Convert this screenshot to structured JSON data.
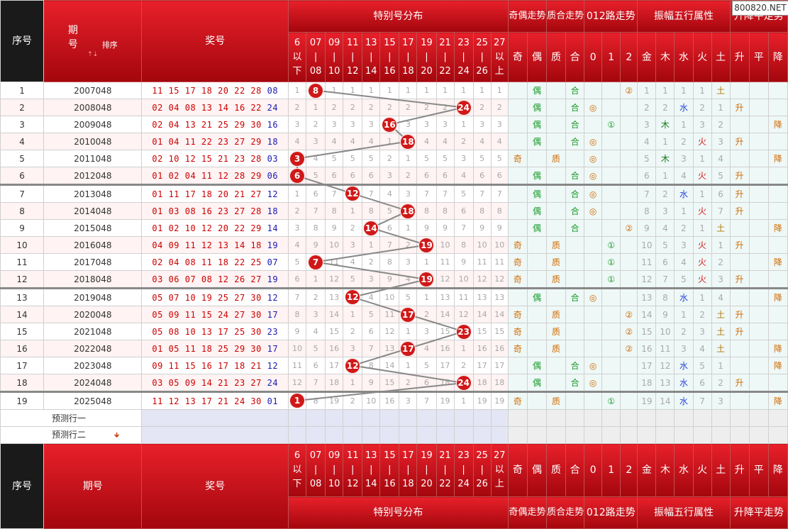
{
  "logo": "800820.NET",
  "header": {
    "seq": "序号",
    "period": "期号",
    "sort": "排序",
    "sort_arrows": "⇡⇣",
    "number": "奖号",
    "special": "特别号分布",
    "odd_even": "奇偶走势",
    "prime": "质合走势",
    "road": "012路走势",
    "wuxing": "振幅五行属性",
    "updown": "升降平走势"
  },
  "bins": [
    [
      "6",
      "以",
      "下"
    ],
    [
      "07",
      "|",
      "08"
    ],
    [
      "09",
      "|",
      "10"
    ],
    [
      "11",
      "|",
      "12"
    ],
    [
      "13",
      "|",
      "14"
    ],
    [
      "15",
      "|",
      "16"
    ],
    [
      "17",
      "|",
      "18"
    ],
    [
      "19",
      "|",
      "20"
    ],
    [
      "21",
      "|",
      "22"
    ],
    [
      "23",
      "|",
      "24"
    ],
    [
      "25",
      "|",
      "26"
    ],
    [
      "27",
      "以",
      "上"
    ]
  ],
  "subheaders": {
    "odd_even": [
      "奇",
      "偶"
    ],
    "prime": [
      "质",
      "合"
    ],
    "road": [
      "0",
      "1",
      "2"
    ],
    "wuxing": [
      "金",
      "木",
      "水",
      "火",
      "土"
    ],
    "updown": [
      "升",
      "平",
      "降"
    ]
  },
  "rows": [
    {
      "seq": "1",
      "period": "2007048",
      "numbers": "11 15 17 18 20 22 28",
      "special": "08",
      "bin": 1,
      "miss": [
        "1",
        "",
        "1",
        "1",
        "1",
        "1",
        "1",
        "1",
        "1",
        "1",
        "1",
        "1"
      ],
      "oe": [
        "",
        "偶"
      ],
      "pc": [
        "",
        "合"
      ],
      "road": [
        "",
        "",
        "②"
      ],
      "wx": [
        "1",
        "1",
        "1",
        "1",
        "土"
      ],
      "wxc": [
        "wgray",
        "wgray",
        "wgray",
        "wgray",
        "wearth"
      ],
      "ud": [
        "",
        "",
        ""
      ]
    },
    {
      "seq": "2",
      "period": "2008048",
      "numbers": "02 04 08 13 14 16 22",
      "special": "24",
      "bin": 9,
      "miss": [
        "2",
        "1",
        "2",
        "2",
        "2",
        "2",
        "2",
        "2",
        "2",
        "",
        "2",
        "2"
      ],
      "oe": [
        "",
        "偶"
      ],
      "pc": [
        "",
        "合"
      ],
      "road": [
        "◎",
        "",
        ""
      ],
      "wx": [
        "2",
        "2",
        "水",
        "2",
        "1"
      ],
      "wxc": [
        "wgray",
        "wgray",
        "wwater",
        "wgray",
        "wgray"
      ],
      "ud": [
        "升",
        "",
        ""
      ]
    },
    {
      "seq": "3",
      "period": "2009048",
      "numbers": "02 04 13 21 25 29 30",
      "special": "16",
      "bin": 5,
      "miss": [
        "3",
        "2",
        "3",
        "3",
        "3",
        "",
        "3",
        "3",
        "3",
        "1",
        "3",
        "3"
      ],
      "oe": [
        "",
        "偶"
      ],
      "pc": [
        "",
        "合"
      ],
      "road": [
        "",
        "①",
        ""
      ],
      "wx": [
        "3",
        "木",
        "1",
        "3",
        "2"
      ],
      "wxc": [
        "wgray",
        "wood",
        "wgray",
        "wgray",
        "wgray"
      ],
      "ud": [
        "",
        "",
        "降"
      ]
    },
    {
      "seq": "4",
      "period": "2010048",
      "numbers": "01 04 11 22 23 27 29",
      "special": "18",
      "bin": 6,
      "miss": [
        "4",
        "3",
        "4",
        "4",
        "4",
        "1",
        "",
        "4",
        "4",
        "2",
        "4",
        "4"
      ],
      "oe": [
        "",
        "偶"
      ],
      "pc": [
        "",
        "合"
      ],
      "road": [
        "◎",
        "",
        ""
      ],
      "wx": [
        "4",
        "1",
        "2",
        "火",
        "3"
      ],
      "wxc": [
        "wgray",
        "wgray",
        "wgray",
        "wfire",
        "wgray"
      ],
      "ud": [
        "升",
        "",
        ""
      ]
    },
    {
      "seq": "5",
      "period": "2011048",
      "numbers": "02 10 12 15 21 23 28",
      "special": "03",
      "bin": 0,
      "miss": [
        "",
        "4",
        "5",
        "5",
        "5",
        "2",
        "1",
        "5",
        "5",
        "3",
        "5",
        "5"
      ],
      "oe": [
        "奇",
        ""
      ],
      "pc": [
        "质",
        ""
      ],
      "road": [
        "◎",
        "",
        ""
      ],
      "wx": [
        "5",
        "木",
        "3",
        "1",
        "4"
      ],
      "wxc": [
        "wgray",
        "wood",
        "wgray",
        "wgray",
        "wgray"
      ],
      "ud": [
        "",
        "",
        "降"
      ]
    },
    {
      "seq": "6",
      "period": "2012048",
      "numbers": "01 02 04 11 12 28 29",
      "special": "06",
      "bin": 0,
      "miss": [
        "",
        "5",
        "6",
        "6",
        "6",
        "3",
        "2",
        "6",
        "6",
        "4",
        "6",
        "6"
      ],
      "oe": [
        "",
        "偶"
      ],
      "pc": [
        "",
        "合"
      ],
      "road": [
        "◎",
        "",
        ""
      ],
      "wx": [
        "6",
        "1",
        "4",
        "火",
        "5"
      ],
      "wxc": [
        "wgray",
        "wgray",
        "wgray",
        "wfire",
        "wgray"
      ],
      "ud": [
        "升",
        "",
        ""
      ]
    },
    {
      "seq": "7",
      "period": "2013048",
      "numbers": "01 11 17 18 20 21 27",
      "special": "12",
      "bin": 3,
      "miss": [
        "1",
        "6",
        "7",
        "",
        "7",
        "4",
        "3",
        "7",
        "7",
        "5",
        "7",
        "7"
      ],
      "oe": [
        "",
        "偶"
      ],
      "pc": [
        "",
        "合"
      ],
      "road": [
        "◎",
        "",
        ""
      ],
      "wx": [
        "7",
        "2",
        "水",
        "1",
        "6"
      ],
      "wxc": [
        "wgray",
        "wgray",
        "wwater",
        "wgray",
        "wgray"
      ],
      "ud": [
        "升",
        "",
        ""
      ]
    },
    {
      "seq": "8",
      "period": "2014048",
      "numbers": "01 03 08 16 23 27 28",
      "special": "18",
      "bin": 6,
      "miss": [
        "2",
        "7",
        "8",
        "1",
        "8",
        "5",
        "",
        "8",
        "8",
        "6",
        "8",
        "8"
      ],
      "oe": [
        "",
        "偶"
      ],
      "pc": [
        "",
        "合"
      ],
      "road": [
        "◎",
        "",
        ""
      ],
      "wx": [
        "8",
        "3",
        "1",
        "火",
        "7"
      ],
      "wxc": [
        "wgray",
        "wgray",
        "wgray",
        "wfire",
        "wgray"
      ],
      "ud": [
        "升",
        "",
        ""
      ]
    },
    {
      "seq": "9",
      "period": "2015048",
      "numbers": "01 02 10 12 20 22 29",
      "special": "14",
      "bin": 4,
      "miss": [
        "3",
        "8",
        "9",
        "2",
        "",
        "6",
        "1",
        "9",
        "9",
        "7",
        "9",
        "9"
      ],
      "oe": [
        "",
        "偶"
      ],
      "pc": [
        "",
        "合"
      ],
      "road": [
        "",
        "",
        "②"
      ],
      "wx": [
        "9",
        "4",
        "2",
        "1",
        "土"
      ],
      "wxc": [
        "wgray",
        "wgray",
        "wgray",
        "wgray",
        "wearth"
      ],
      "ud": [
        "",
        "",
        "降"
      ]
    },
    {
      "seq": "10",
      "period": "2016048",
      "numbers": "04 09 11 12 13 14 18",
      "special": "19",
      "bin": 7,
      "miss": [
        "4",
        "9",
        "10",
        "3",
        "1",
        "7",
        "2",
        "",
        "10",
        "8",
        "10",
        "10"
      ],
      "oe": [
        "奇",
        ""
      ],
      "pc": [
        "质",
        ""
      ],
      "road": [
        "",
        "①",
        ""
      ],
      "wx": [
        "10",
        "5",
        "3",
        "火",
        "1"
      ],
      "wxc": [
        "wgray",
        "wgray",
        "wgray",
        "wfire",
        "wgray"
      ],
      "ud": [
        "升",
        "",
        ""
      ]
    },
    {
      "seq": "11",
      "period": "2017048",
      "numbers": "02 04 08 11 18 22 25",
      "special": "07",
      "bin": 1,
      "miss": [
        "5",
        "",
        "11",
        "4",
        "2",
        "8",
        "3",
        "1",
        "11",
        "9",
        "11",
        "11"
      ],
      "oe": [
        "奇",
        ""
      ],
      "pc": [
        "质",
        ""
      ],
      "road": [
        "",
        "①",
        ""
      ],
      "wx": [
        "11",
        "6",
        "4",
        "火",
        "2"
      ],
      "wxc": [
        "wgray",
        "wgray",
        "wgray",
        "wfire",
        "wgray"
      ],
      "ud": [
        "",
        "",
        "降"
      ]
    },
    {
      "seq": "12",
      "period": "2018048",
      "numbers": "03 06 07 08 12 26 27",
      "special": "19",
      "bin": 7,
      "miss": [
        "6",
        "1",
        "12",
        "5",
        "3",
        "9",
        "4",
        "",
        "12",
        "10",
        "12",
        "12"
      ],
      "oe": [
        "奇",
        ""
      ],
      "pc": [
        "质",
        ""
      ],
      "road": [
        "",
        "①",
        ""
      ],
      "wx": [
        "12",
        "7",
        "5",
        "火",
        "3"
      ],
      "wxc": [
        "wgray",
        "wgray",
        "wgray",
        "wfire",
        "wgray"
      ],
      "ud": [
        "升",
        "",
        ""
      ]
    },
    {
      "seq": "13",
      "period": "2019048",
      "numbers": "05 07 10 19 25 27 30",
      "special": "12",
      "bin": 3,
      "miss": [
        "7",
        "2",
        "13",
        "",
        "4",
        "10",
        "5",
        "1",
        "13",
        "11",
        "13",
        "13"
      ],
      "oe": [
        "",
        "偶"
      ],
      "pc": [
        "",
        "合"
      ],
      "road": [
        "◎",
        "",
        ""
      ],
      "wx": [
        "13",
        "8",
        "水",
        "1",
        "4"
      ],
      "wxc": [
        "wgray",
        "wgray",
        "wwater",
        "wgray",
        "wgray"
      ],
      "ud": [
        "",
        "",
        "降"
      ]
    },
    {
      "seq": "14",
      "period": "2020048",
      "numbers": "05 09 11 15 24 27 30",
      "special": "17",
      "bin": 6,
      "miss": [
        "8",
        "3",
        "14",
        "1",
        "5",
        "11",
        "",
        "2",
        "14",
        "12",
        "14",
        "14"
      ],
      "oe": [
        "奇",
        ""
      ],
      "pc": [
        "质",
        ""
      ],
      "road": [
        "",
        "",
        "②"
      ],
      "wx": [
        "14",
        "9",
        "1",
        "2",
        "土"
      ],
      "wxc": [
        "wgray",
        "wgray",
        "wgray",
        "wgray",
        "wearth"
      ],
      "ud": [
        "升",
        "",
        ""
      ]
    },
    {
      "seq": "15",
      "period": "2021048",
      "numbers": "05 08 10 13 17 25 30",
      "special": "23",
      "bin": 9,
      "miss": [
        "9",
        "4",
        "15",
        "2",
        "6",
        "12",
        "1",
        "3",
        "15",
        "",
        "15",
        "15"
      ],
      "oe": [
        "奇",
        ""
      ],
      "pc": [
        "质",
        ""
      ],
      "road": [
        "",
        "",
        "②"
      ],
      "wx": [
        "15",
        "10",
        "2",
        "3",
        "土"
      ],
      "wxc": [
        "wgray",
        "wgray",
        "wgray",
        "wgray",
        "wearth"
      ],
      "ud": [
        "升",
        "",
        ""
      ]
    },
    {
      "seq": "16",
      "period": "2022048",
      "numbers": "01 05 11 18 25 29 30",
      "special": "17",
      "bin": 6,
      "miss": [
        "10",
        "5",
        "16",
        "3",
        "7",
        "13",
        "",
        "4",
        "16",
        "1",
        "16",
        "16"
      ],
      "oe": [
        "奇",
        ""
      ],
      "pc": [
        "质",
        ""
      ],
      "road": [
        "",
        "",
        "②"
      ],
      "wx": [
        "16",
        "11",
        "3",
        "4",
        "土"
      ],
      "wxc": [
        "wgray",
        "wgray",
        "wgray",
        "wgray",
        "wearth"
      ],
      "ud": [
        "",
        "",
        "降"
      ]
    },
    {
      "seq": "17",
      "period": "2023048",
      "numbers": "09 11 15 16 17 18 21",
      "special": "12",
      "bin": 3,
      "miss": [
        "11",
        "6",
        "17",
        "",
        "8",
        "14",
        "1",
        "5",
        "17",
        "2",
        "17",
        "17"
      ],
      "oe": [
        "",
        "偶"
      ],
      "pc": [
        "",
        "合"
      ],
      "road": [
        "◎",
        "",
        ""
      ],
      "wx": [
        "17",
        "12",
        "水",
        "5",
        "1"
      ],
      "wxc": [
        "wgray",
        "wgray",
        "wwater",
        "wgray",
        "wgray"
      ],
      "ud": [
        "",
        "",
        "降"
      ]
    },
    {
      "seq": "18",
      "period": "2024048",
      "numbers": "03 05 09 14 21 23 27",
      "special": "24",
      "bin": 9,
      "miss": [
        "12",
        "7",
        "18",
        "1",
        "9",
        "15",
        "2",
        "6",
        "18",
        "",
        "18",
        "18"
      ],
      "oe": [
        "",
        "偶"
      ],
      "pc": [
        "",
        "合"
      ],
      "road": [
        "◎",
        "",
        ""
      ],
      "wx": [
        "18",
        "13",
        "水",
        "6",
        "2"
      ],
      "wxc": [
        "wgray",
        "wgray",
        "wwater",
        "wgray",
        "wgray"
      ],
      "ud": [
        "升",
        "",
        ""
      ]
    },
    {
      "seq": "19",
      "period": "2025048",
      "numbers": "11 12 13 17 21 24 30",
      "special": "01",
      "bin": 0,
      "miss": [
        "",
        "8",
        "19",
        "2",
        "10",
        "16",
        "3",
        "7",
        "19",
        "1",
        "19",
        "19"
      ],
      "oe": [
        "奇",
        ""
      ],
      "pc": [
        "质",
        ""
      ],
      "road": [
        "",
        "①",
        ""
      ],
      "wx": [
        "19",
        "14",
        "水",
        "7",
        "3"
      ],
      "wxc": [
        "wgray",
        "wgray",
        "wwater",
        "wgray",
        "wgray"
      ],
      "ud": [
        "",
        "",
        "降"
      ]
    }
  ],
  "predict": [
    "预测行一",
    "预测行二"
  ],
  "predict_arrow": "🡻",
  "colors": {
    "header_red": "#d01018",
    "ball_red": "#d01818",
    "special_blue": "#1a1ab0",
    "number_red": "#c00000"
  }
}
